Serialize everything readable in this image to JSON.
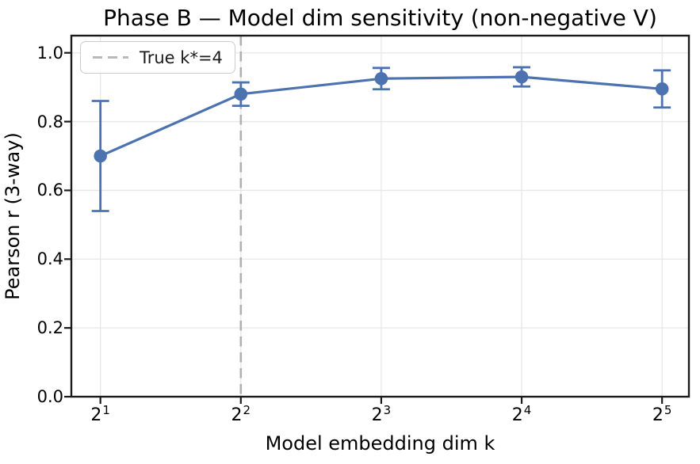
{
  "title": "Phase B — Model dim sensitivity (non-negative V)",
  "legend": {
    "label": "True k*=4"
  },
  "x_axis": {
    "label": "Model embedding dim k",
    "ticks": [
      {
        "base": "2",
        "exp": "1",
        "value": 2
      },
      {
        "base": "2",
        "exp": "2",
        "value": 4
      },
      {
        "base": "2",
        "exp": "3",
        "value": 8
      },
      {
        "base": "2",
        "exp": "4",
        "value": 16
      },
      {
        "base": "2",
        "exp": "5",
        "value": 32
      }
    ]
  },
  "y_axis": {
    "label": "Pearson r (3-way)",
    "ticks": [
      {
        "label": "0.0",
        "value": 0.0
      },
      {
        "label": "0.2",
        "value": 0.2
      },
      {
        "label": "0.4",
        "value": 0.4
      },
      {
        "label": "0.6",
        "value": 0.6
      },
      {
        "label": "0.8",
        "value": 0.8
      },
      {
        "label": "1.0",
        "value": 1.0
      }
    ]
  },
  "chart_data": {
    "type": "line",
    "title": "Phase B — Model dim sensitivity (non-negative V)",
    "xlabel": "Model embedding dim k",
    "ylabel": "Pearson r (3-way)",
    "x_scale": "log2",
    "x": [
      2,
      4,
      8,
      16,
      32
    ],
    "x_tick_labels": [
      "2^1",
      "2^2",
      "2^3",
      "2^4",
      "2^5"
    ],
    "series": [
      {
        "name": "Pearson r (3-way)",
        "values": [
          0.7,
          0.88,
          0.925,
          0.93,
          0.895
        ],
        "yerr": [
          0.16,
          0.034,
          0.031,
          0.028,
          0.054
        ],
        "color": "#4C72B0"
      }
    ],
    "vline": {
      "x": 4,
      "label": "True k*=4",
      "style": "dashed",
      "color": "#b0b0b0"
    },
    "xlim_log2": [
      0.793,
      5.191
    ],
    "ylim": [
      0.0,
      1.05
    ],
    "yticks": [
      0.0,
      0.2,
      0.4,
      0.6,
      0.8,
      1.0
    ],
    "grid": true,
    "legend_position": "upper left"
  },
  "colors": {
    "series": "#4C72B0",
    "grid": "#e7e7e7",
    "vline": "#b0b0b0",
    "spine": "#1a1a1a",
    "background": "#ffffff",
    "text": "#000000",
    "legend_border": "#cccccc"
  }
}
